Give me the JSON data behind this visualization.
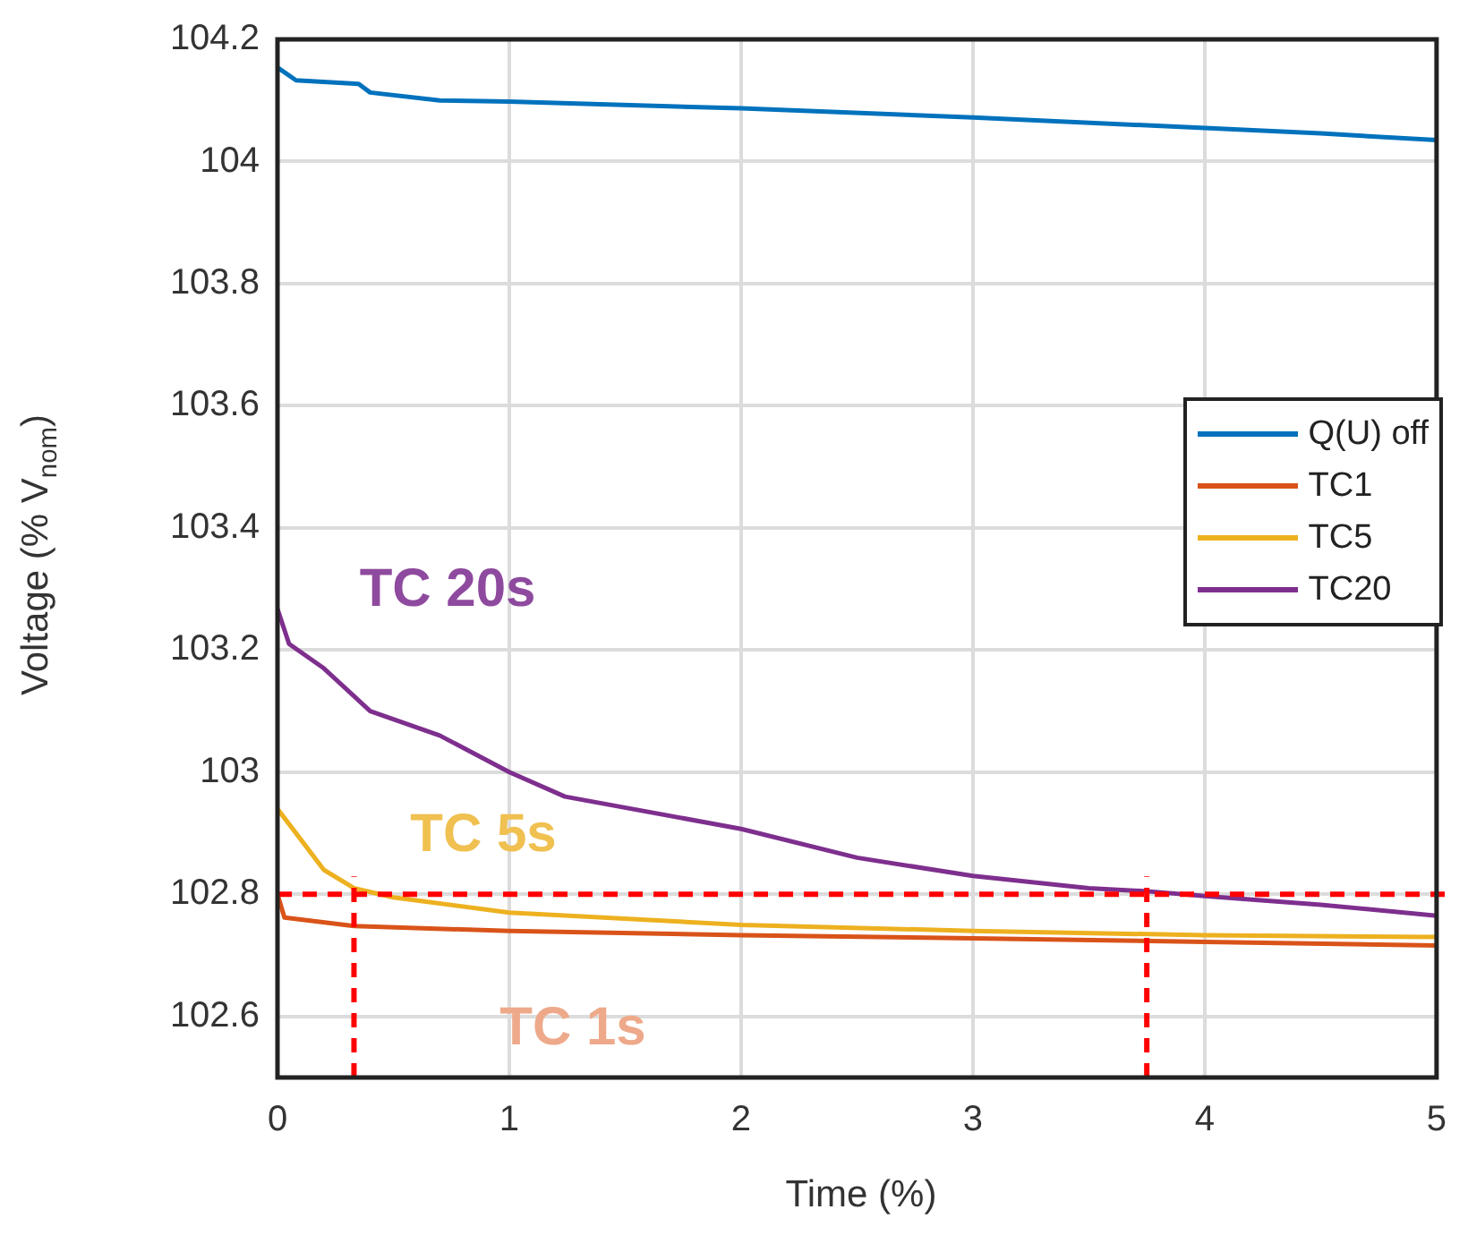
{
  "chart_data": {
    "type": "line",
    "xlabel": "Time (%)",
    "ylabel": "Voltage (% V$_{nom}$)",
    "xlim": [
      0,
      5
    ],
    "xticks": [
      0,
      1,
      2,
      3,
      4,
      5
    ],
    "ylim": [
      102.5,
      104.2
    ],
    "yticks": [
      102.6,
      102.8,
      103,
      103.2,
      103.4,
      103.6,
      103.8,
      104,
      104.2
    ],
    "grid": true,
    "legend": "top right",
    "line_style": "solid",
    "marker": "none",
    "series": [
      {
        "name": "Q(U) off",
        "color": "#0072bd",
        "x": [
          0,
          0.08,
          0.35,
          0.4,
          0.7,
          1,
          2,
          3,
          4,
          4.5,
          5
        ],
        "values": [
          104.154,
          104.133,
          104.127,
          104.113,
          104.1,
          104.098,
          104.087,
          104.072,
          104.055,
          104.046,
          104.035
        ]
      },
      {
        "name": "TC1",
        "color": "#d95319",
        "x": [
          0,
          0.03,
          0.33,
          1,
          2,
          3,
          4,
          5
        ],
        "values": [
          102.8,
          102.762,
          102.748,
          102.74,
          102.733,
          102.728,
          102.722,
          102.716
        ]
      },
      {
        "name": "TC5",
        "color": "#edb120",
        "x": [
          0,
          0.1,
          0.2,
          0.33,
          0.5,
          1,
          2,
          3,
          4,
          5
        ],
        "values": [
          102.94,
          102.89,
          102.84,
          102.81,
          102.795,
          102.77,
          102.75,
          102.74,
          102.733,
          102.73
        ]
      },
      {
        "name": "TC20",
        "color": "#7e2f8e",
        "x": [
          0,
          0.05,
          0.2,
          0.4,
          0.7,
          1,
          1.24,
          2,
          2.5,
          3,
          3.5,
          3.75,
          4,
          4.5,
          5
        ],
        "values": [
          103.267,
          103.21,
          103.17,
          103.1,
          103.06,
          103,
          102.96,
          102.907,
          102.86,
          102.83,
          102.81,
          102.805,
          102.797,
          102.783,
          102.765
        ]
      }
    ],
    "ref_lines": [
      {
        "axis": "y",
        "value": 102.8,
        "color": "#ff0000",
        "line_style": "dashed"
      },
      {
        "axis": "x",
        "value": 0.33,
        "color": "#ff0000",
        "line_style": "dashed"
      },
      {
        "axis": "x",
        "value": 3.75,
        "color": "#ff0000",
        "line_style": "dashed"
      }
    ],
    "annotations": [
      "TC 20s",
      "TC 5s",
      "TC 1s"
    ]
  }
}
